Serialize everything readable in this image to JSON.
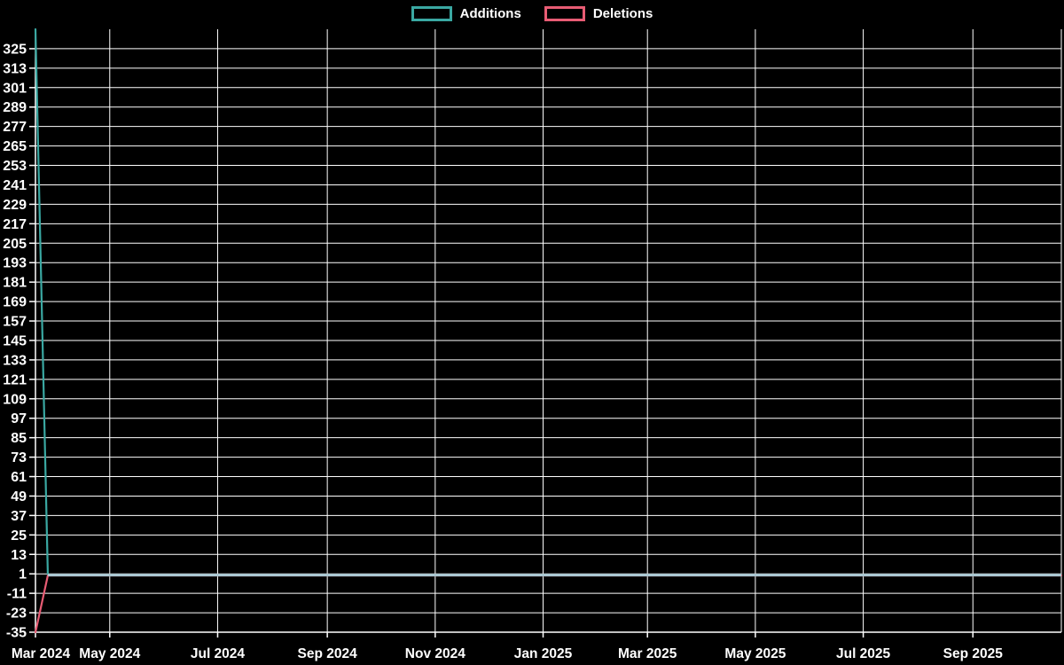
{
  "chart_data": {
    "type": "line",
    "title": "",
    "xlabel": "",
    "ylabel": "",
    "x": [
      "2024-03-20",
      "2024-03-27",
      "2025-10-21"
    ],
    "series": [
      {
        "name": "Additions",
        "color": "#3aa8a2",
        "values": [
          337,
          0,
          0
        ]
      },
      {
        "name": "Deletions",
        "color": "#e85c74",
        "values": [
          -35,
          0,
          0
        ]
      }
    ],
    "overlap_segment": {
      "from": "2024-03-27",
      "to": "2025-10-21",
      "value": 0,
      "color": "#abc8d2",
      "width": 3
    },
    "x_domain": [
      "2024-03-20",
      "2025-10-21"
    ],
    "ylim": [
      -35,
      337
    ],
    "y_ticks": [
      -35,
      -23,
      -11,
      1,
      13,
      25,
      37,
      49,
      61,
      73,
      85,
      97,
      109,
      121,
      133,
      145,
      157,
      169,
      181,
      193,
      205,
      217,
      229,
      241,
      253,
      265,
      277,
      289,
      301,
      313,
      325
    ],
    "x_ticks": [
      {
        "date": "2024-03-20",
        "label": "Mar 2024",
        "edge": true
      },
      {
        "date": "2024-05-01",
        "label": "May 2024"
      },
      {
        "date": "2024-07-01",
        "label": "Jul 2024"
      },
      {
        "date": "2024-09-01",
        "label": "Sep 2024"
      },
      {
        "date": "2024-11-01",
        "label": "Nov 2024"
      },
      {
        "date": "2025-01-01",
        "label": "Jan 2025"
      },
      {
        "date": "2025-03-01",
        "label": "Mar 2025"
      },
      {
        "date": "2025-05-01",
        "label": "May 2025"
      },
      {
        "date": "2025-07-01",
        "label": "Jul 2025"
      },
      {
        "date": "2025-09-01",
        "label": "Sep 2025"
      }
    ],
    "grid": true,
    "legend_position": "top-center",
    "colors": {
      "background": "#000000",
      "grid": "#ffffff",
      "axis": "#ffffff",
      "tick_label": "#ffffff",
      "legend_text": "#ffffff"
    }
  }
}
